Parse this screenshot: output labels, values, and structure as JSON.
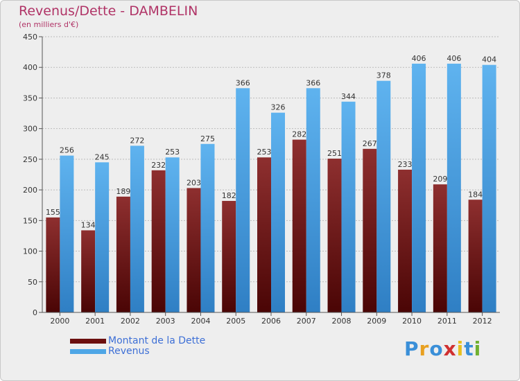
{
  "header": {
    "title": "Revenus/Dette - DAMBELIN",
    "subtitle": "(en milliers d'€)"
  },
  "colors": {
    "dette": "#7a1a1a",
    "revenus": "#4ea6e6",
    "axis_text": "#333333",
    "grid": "#bbbbbb"
  },
  "chart_data": {
    "type": "bar",
    "title": "Revenus/Dette - DAMBELIN",
    "subtitle": "(en milliers d'€)",
    "categories": [
      "2000",
      "2001",
      "2002",
      "2003",
      "2004",
      "2005",
      "2006",
      "2007",
      "2008",
      "2009",
      "2010",
      "2011",
      "2012"
    ],
    "series": [
      {
        "name": "Montant de la Dette",
        "values": [
          155,
          134,
          189,
          232,
          203,
          182,
          253,
          282,
          251,
          267,
          233,
          209,
          184
        ]
      },
      {
        "name": "Revenus",
        "values": [
          256,
          245,
          272,
          253,
          275,
          366,
          326,
          366,
          344,
          378,
          406,
          406,
          404
        ]
      }
    ],
    "ylim": [
      0,
      450
    ],
    "yticks": [
      0,
      50,
      100,
      150,
      200,
      250,
      300,
      350,
      400,
      450
    ],
    "grid": true,
    "legend_position": "bottom-left"
  },
  "legend": {
    "items": [
      {
        "label": "Montant de la Dette",
        "color": "#6b0f0f"
      },
      {
        "label": "Revenus",
        "color": "#4ea6e6"
      }
    ]
  },
  "logo": {
    "letters": [
      "P",
      "r",
      "o",
      "x",
      "i",
      "t",
      "i"
    ],
    "colors": [
      "#3a8fd8",
      "#e8a020",
      "#3a8fd8",
      "#d03030",
      "#e8c020",
      "#3a8fd8",
      "#70b030"
    ]
  }
}
